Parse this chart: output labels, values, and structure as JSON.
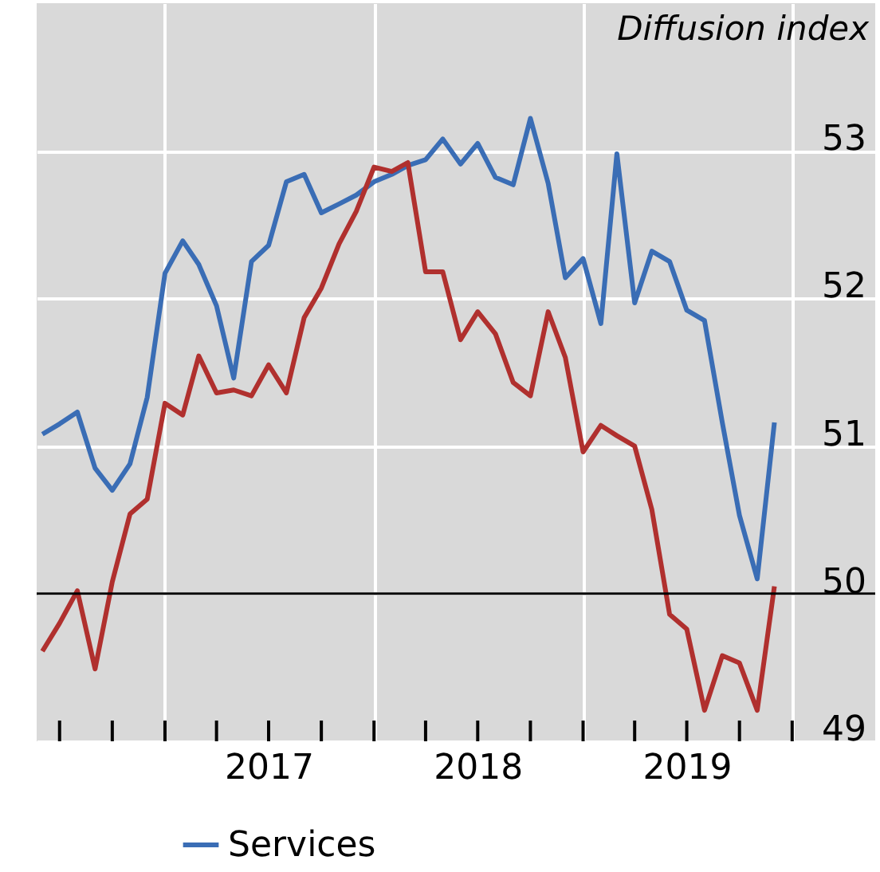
{
  "chart_data": {
    "type": "line",
    "ylabel": "Diffusion index",
    "x": [
      "2016-06",
      "2016-07",
      "2016-08",
      "2016-09",
      "2016-10",
      "2016-11",
      "2016-12",
      "2017-01",
      "2017-02",
      "2017-03",
      "2017-04",
      "2017-05",
      "2017-06",
      "2017-07",
      "2017-08",
      "2017-09",
      "2017-10",
      "2017-11",
      "2017-12",
      "2018-01",
      "2018-02",
      "2018-03",
      "2018-04",
      "2018-05",
      "2018-06",
      "2018-07",
      "2018-08",
      "2018-09",
      "2018-10",
      "2018-11",
      "2018-12",
      "2019-01",
      "2019-02",
      "2019-03",
      "2019-04",
      "2019-05",
      "2019-06",
      "2019-07",
      "2019-08",
      "2019-09",
      "2019-10",
      "2019-11",
      "2019-12"
    ],
    "series": [
      {
        "name": "Services",
        "color": "#3a6db5",
        "values": [
          51.08,
          51.15,
          51.23,
          50.85,
          50.7,
          50.88,
          51.33,
          52.17,
          52.39,
          52.23,
          51.95,
          51.46,
          52.25,
          52.36,
          52.79,
          52.84,
          52.58,
          52.64,
          52.7,
          52.79,
          52.84,
          52.9,
          52.94,
          53.08,
          52.91,
          53.05,
          52.82,
          52.77,
          53.22,
          52.78,
          52.14,
          52.27,
          51.83,
          52.98,
          51.97,
          52.32,
          52.25,
          51.92,
          51.85,
          51.16,
          50.53,
          50.1,
          51.16
        ]
      },
      {
        "color": "#b0302e",
        "values": [
          49.61,
          49.8,
          50.02,
          49.49,
          50.08,
          50.54,
          50.64,
          51.29,
          51.21,
          51.61,
          51.36,
          51.38,
          51.34,
          51.55,
          51.36,
          51.87,
          52.07,
          52.37,
          52.59,
          52.89,
          52.86,
          52.92,
          52.18,
          52.18,
          51.72,
          51.91,
          51.76,
          51.43,
          51.34,
          51.91,
          51.6,
          50.96,
          51.14,
          51.07,
          51.0,
          50.57,
          49.86,
          49.76,
          49.21,
          49.58,
          49.53,
          49.21,
          50.05
        ]
      }
    ],
    "xlim": [
      "2016-05-22",
      "2020-05-25"
    ],
    "xticks": [
      {
        "value": "2016-07",
        "label": null
      },
      {
        "value": "2016-10",
        "label": null
      },
      {
        "value": "2017-01",
        "label": null
      },
      {
        "value": "2017-04",
        "label": null
      },
      {
        "value": "2017-07",
        "label": "2017"
      },
      {
        "value": "2017-10",
        "label": null
      },
      {
        "value": "2018-01",
        "label": null
      },
      {
        "value": "2018-04",
        "label": null
      },
      {
        "value": "2018-07",
        "label": "2018"
      },
      {
        "value": "2018-10",
        "label": null
      },
      {
        "value": "2019-01",
        "label": null
      },
      {
        "value": "2019-04",
        "label": null
      },
      {
        "value": "2019-07",
        "label": "2019"
      },
      {
        "value": "2019-10",
        "label": null
      },
      {
        "value": "2020-01",
        "label": null
      }
    ],
    "ylim": [
      49,
      54
    ],
    "yticks": [
      49,
      50,
      51,
      52,
      53
    ],
    "ref_lines": [
      {
        "axis": "y",
        "value": 50,
        "color": "#000000"
      }
    ],
    "grid": true,
    "legend": "bottom",
    "line_style": "solid",
    "marker": "none"
  }
}
